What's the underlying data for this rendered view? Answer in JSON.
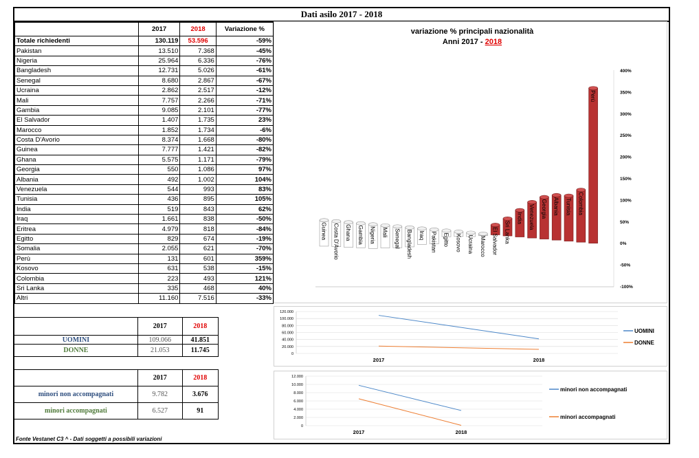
{
  "title": "Dati asilo 2017 - 2018",
  "table": {
    "headers": {
      "y2017": "2017",
      "y2018": "2018",
      "var": "Variazione %"
    },
    "total": {
      "label": "Totale richiedenti",
      "v2017": "130.119",
      "v2018": "53.596",
      "var": "-59%"
    },
    "rows": [
      {
        "name": "Pakistan",
        "v2017": "13.510",
        "v2018": "7.368",
        "var": "-45%"
      },
      {
        "name": "Nigeria",
        "v2017": "25.964",
        "v2018": "6.336",
        "var": "-76%"
      },
      {
        "name": "Bangladesh",
        "v2017": "12.731",
        "v2018": "5.026",
        "var": "-61%"
      },
      {
        "name": "Senegal",
        "v2017": "8.680",
        "v2018": "2.867",
        "var": "-67%"
      },
      {
        "name": "Ucraina",
        "v2017": "2.862",
        "v2018": "2.517",
        "var": "-12%"
      },
      {
        "name": "Mali",
        "v2017": "7.757",
        "v2018": "2.266",
        "var": "-71%"
      },
      {
        "name": "Gambia",
        "v2017": "9.085",
        "v2018": "2.101",
        "var": "-77%"
      },
      {
        "name": "El Salvador",
        "v2017": "1.407",
        "v2018": "1.735",
        "var": "23%"
      },
      {
        "name": "Marocco",
        "v2017": "1.852",
        "v2018": "1.734",
        "var": "-6%"
      },
      {
        "name": "Costa D'Avorio",
        "v2017": "8.374",
        "v2018": "1.668",
        "var": "-80%"
      },
      {
        "name": "Guinea",
        "v2017": "7.777",
        "v2018": "1.421",
        "var": "-82%"
      },
      {
        "name": "Ghana",
        "v2017": "5.575",
        "v2018": "1.171",
        "var": "-79%"
      },
      {
        "name": "Georgia",
        "v2017": "550",
        "v2018": "1.086",
        "var": "97%"
      },
      {
        "name": "Albania",
        "v2017": "492",
        "v2018": "1.002",
        "var": "104%"
      },
      {
        "name": "Venezuela",
        "v2017": "544",
        "v2018": "993",
        "var": "83%"
      },
      {
        "name": "Tunisia",
        "v2017": "436",
        "v2018": "895",
        "var": "105%"
      },
      {
        "name": "India",
        "v2017": "519",
        "v2018": "843",
        "var": "62%"
      },
      {
        "name": "Iraq",
        "v2017": "1.661",
        "v2018": "838",
        "var": "-50%"
      },
      {
        "name": "Eritrea",
        "v2017": "4.979",
        "v2018": "818",
        "var": "-84%"
      },
      {
        "name": "Egitto",
        "v2017": "829",
        "v2018": "674",
        "var": "-19%"
      },
      {
        "name": "Somalia",
        "v2017": "2.055",
        "v2018": "621",
        "var": "-70%"
      },
      {
        "name": "Perù",
        "v2017": "131",
        "v2018": "601",
        "var": "359%"
      },
      {
        "name": "Kosovo",
        "v2017": "631",
        "v2018": "538",
        "var": "-15%"
      },
      {
        "name": "Colombia",
        "v2017": "223",
        "v2018": "493",
        "var": "121%"
      },
      {
        "name": "Sri Lanka",
        "v2017": "335",
        "v2018": "468",
        "var": "40%"
      },
      {
        "name": "Altri",
        "v2017": "11.160",
        "v2018": "7.516",
        "var": "-33%"
      }
    ]
  },
  "gender": {
    "y2017": "2017",
    "y2018": "2018",
    "uomini": {
      "label": "UOMINI",
      "v2017": "109.066",
      "v2018": "41.851"
    },
    "donne": {
      "label": "DONNE",
      "v2017": "21.053",
      "v2018": "11.745"
    }
  },
  "minors": {
    "y2017": "2017",
    "y2018": "2018",
    "non_acc": {
      "label": "minori non accompagnati",
      "v2017": "9.782",
      "v2018": "3.676"
    },
    "acc": {
      "label": "minori accompagnati",
      "v2017": "6.527",
      "v2018": "91"
    }
  },
  "footer": "Fonte Vestanet C3 ^ - Dati soggetti a possibili variazioni",
  "colors": {
    "red": "#e00000",
    "bar_red": "#b83232",
    "bar_white": "#ffffff",
    "blue_line": "#4a86c8",
    "orange_line": "#ed7d31"
  },
  "chart_data": [
    {
      "type": "bar",
      "title": "variazione % principali nazionalità",
      "subtitle": "Anni 2017 - ",
      "subtitle_year": "2018",
      "categories": [
        "Guinea",
        "Costa D'Avorio",
        "Ghana",
        "Gambia",
        "Nigeria",
        "Mali",
        "Senegal",
        "Bangladesh",
        "Iraq",
        "Pakistan",
        "Egitto",
        "Kosovo",
        "Ucraina",
        "Marocco",
        "El Salvador",
        "Sri Lanka",
        "India",
        "Venezuela",
        "Georgia",
        "Albania",
        "Tunisia",
        "Colombia",
        "Perù"
      ],
      "values": [
        -82,
        -80,
        -79,
        -77,
        -76,
        -71,
        -67,
        -61,
        -50,
        -45,
        -19,
        -15,
        -12,
        -6,
        23,
        40,
        62,
        83,
        97,
        104,
        105,
        121,
        359
      ],
      "ylim": [
        -100,
        400
      ],
      "yticks": [
        "400%",
        "350%",
        "300%",
        "250%",
        "200%",
        "150%",
        "100%",
        "50%",
        "0%",
        "-50%",
        "-100%"
      ],
      "ytick_values": [
        400,
        350,
        300,
        250,
        200,
        150,
        100,
        50,
        0,
        -50,
        -100
      ]
    },
    {
      "type": "line",
      "categories": [
        "2017",
        "2018"
      ],
      "series": [
        {
          "name": "UOMINI",
          "values": [
            109066,
            41851
          ]
        },
        {
          "name": "DONNE",
          "values": [
            21053,
            11745
          ]
        }
      ],
      "ylim": [
        0,
        120000
      ],
      "yticks": [
        "120.000",
        "100.000",
        "80.000",
        "60.000",
        "40.000",
        "20.000",
        "0"
      ],
      "ytick_values": [
        120000,
        100000,
        80000,
        60000,
        40000,
        20000,
        0
      ]
    },
    {
      "type": "line",
      "categories": [
        "2017",
        "2018"
      ],
      "series": [
        {
          "name": "minori non accompagnati",
          "values": [
            9782,
            3676
          ]
        },
        {
          "name": "minori accompagnati",
          "values": [
            6527,
            91
          ]
        }
      ],
      "ylim": [
        0,
        12000
      ],
      "yticks": [
        "12.000",
        "10.000",
        "8.000",
        "6.000",
        "4.000",
        "2.000",
        "0"
      ],
      "ytick_values": [
        12000,
        10000,
        8000,
        6000,
        4000,
        2000,
        0
      ]
    }
  ]
}
